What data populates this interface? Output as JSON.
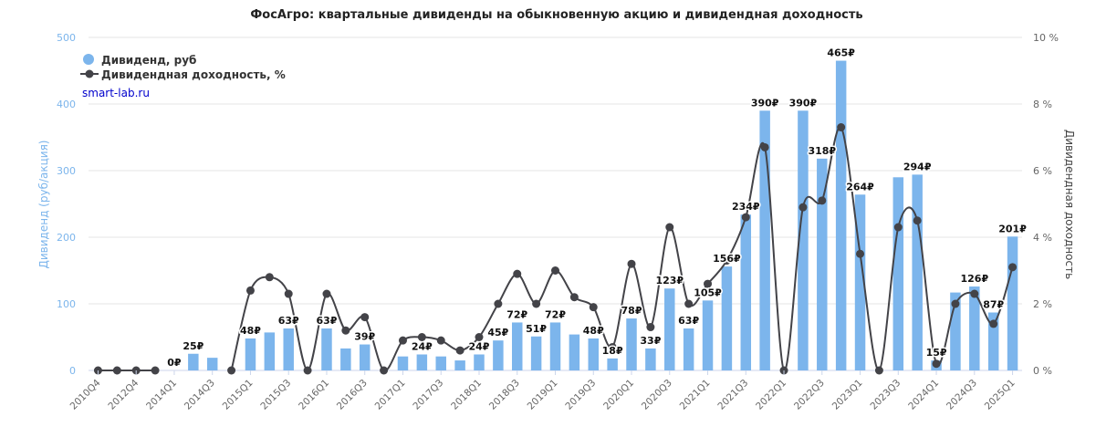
{
  "chart_data": {
    "type": "bar",
    "title": "ФосАгро: квартальные дивиденды на обыкновенную акцию и дивидендная доходность",
    "source": "smart-lab.ru",
    "y_left_label": "Дивиденд (руб/акция)",
    "y_right_label": "Дивидендная доходность",
    "y_left_ticks": [
      "0",
      "100",
      "200",
      "300",
      "400",
      "500"
    ],
    "y_right_ticks": [
      "0 %",
      "2 %",
      "4 %",
      "6 %",
      "8 %",
      "10 %"
    ],
    "y_left_range": [
      0,
      500
    ],
    "y_right_range": [
      0,
      10
    ],
    "legend": [
      {
        "name": "Дивиденд, руб",
        "color": "#7cb5ec"
      },
      {
        "name": "Дивидендная доходность, %",
        "color": "#434348"
      }
    ],
    "x_tick_labels": [
      "2010Q4",
      "2012Q4",
      "2014Q1",
      "2014Q3",
      "2015Q1",
      "2015Q3",
      "2016Q1",
      "2016Q3",
      "2017Q1",
      "2017Q3",
      "2018Q1",
      "2018Q3",
      "2019Q1",
      "2019Q3",
      "2020Q1",
      "2020Q3",
      "2021Q1",
      "2021Q3",
      "2022Q1",
      "2022Q3",
      "2023Q1",
      "2023Q3",
      "2024Q1",
      "2024Q3",
      "2025Q1"
    ],
    "categories": [
      "2010Q4",
      "2011Q4",
      "2012Q4",
      "2013Q4",
      "2014Q1",
      "2014Q2",
      "2014Q3",
      "2014Q4",
      "2015Q1",
      "2015Q2",
      "2015Q3",
      "2015Q4",
      "2016Q1",
      "2016Q2",
      "2016Q3",
      "2016Q4",
      "2017Q1",
      "2017Q2",
      "2017Q3",
      "2017Q4",
      "2018Q1",
      "2018Q2",
      "2018Q3",
      "2018Q4",
      "2019Q1",
      "2019Q2",
      "2019Q3",
      "2019Q4",
      "2020Q1",
      "2020Q2",
      "2020Q3",
      "2020Q4",
      "2021Q1",
      "2021Q2",
      "2021Q3",
      "2021Q4",
      "2022Q1",
      "2022Q2",
      "2022Q3",
      "2022Q4",
      "2023Q1",
      "2023Q2",
      "2023Q3",
      "2023Q4",
      "2024Q1",
      "2024Q2",
      "2024Q3",
      "2024Q4",
      "2025Q1"
    ],
    "dividends": [
      0,
      0,
      0,
      0,
      0,
      25,
      19,
      0,
      48,
      57,
      63,
      0,
      63,
      33,
      39,
      0,
      21,
      24,
      21,
      15,
      24,
      45,
      72,
      51,
      72,
      54,
      48,
      18,
      78,
      33,
      123,
      63,
      105,
      156,
      234,
      390,
      0,
      390,
      318,
      465,
      264,
      0,
      290,
      294,
      15,
      117,
      126,
      87,
      201
    ],
    "dividend_labels": [
      "",
      "",
      "",
      "",
      "0₽",
      "25₽",
      "",
      "",
      "48₽",
      "",
      "63₽",
      "",
      "63₽",
      "",
      "39₽",
      "",
      "",
      "24₽",
      "",
      "",
      "24₽",
      "45₽",
      "72₽",
      "51₽",
      "72₽",
      "",
      "48₽",
      "18₽",
      "78₽",
      "33₽",
      "123₽",
      "63₽",
      "105₽",
      "156₽",
      "234₽",
      "390₽",
      "",
      "390₽",
      "318₽",
      "465₽",
      "264₽",
      "",
      "",
      "294₽",
      "15₽",
      "",
      "126₽",
      "87₽",
      "201₽"
    ],
    "yield_pct": [
      0,
      0,
      0,
      0,
      null,
      null,
      null,
      0,
      2.4,
      2.8,
      2.3,
      0,
      2.3,
      1.2,
      1.6,
      0,
      0.9,
      1.0,
      0.9,
      0.6,
      1.0,
      2.0,
      2.9,
      2.0,
      3.0,
      2.2,
      1.9,
      0.7,
      3.2,
      1.3,
      4.3,
      2.0,
      2.6,
      3.3,
      4.6,
      6.7,
      0,
      4.9,
      5.1,
      7.3,
      3.5,
      0,
      4.3,
      4.5,
      0.2,
      2.0,
      2.3,
      1.4,
      3.1
    ]
  }
}
